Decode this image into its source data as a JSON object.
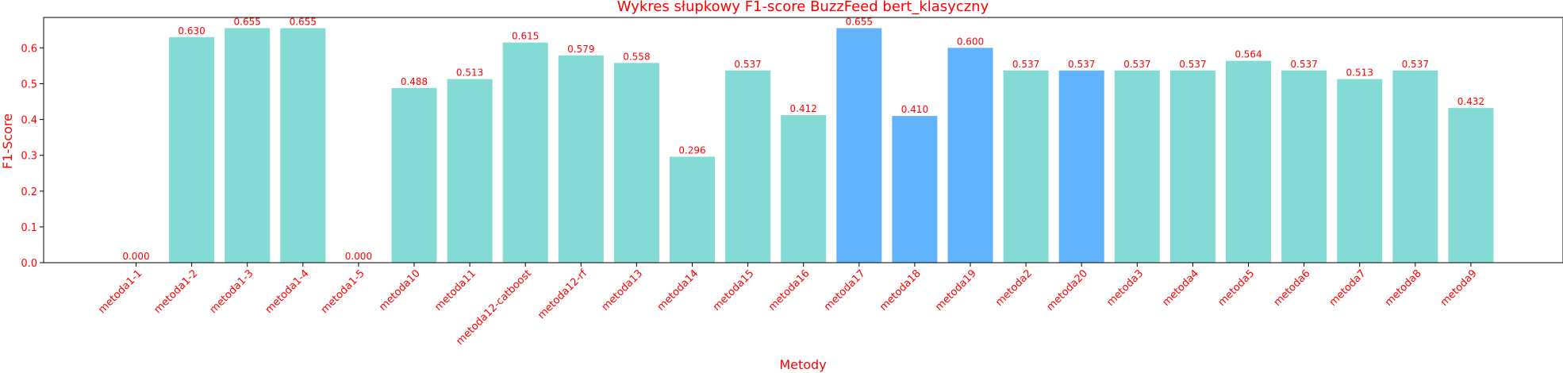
{
  "chart_data": {
    "type": "bar",
    "title": "Wykres słupkowy F1-score BuzzFeed bert_klasyczny",
    "xlabel": "Metody",
    "ylabel": "F1-Score",
    "ylim": [
      0,
      0.685
    ],
    "yticks": [
      "0.0",
      "0.1",
      "0.2",
      "0.3",
      "0.4",
      "0.5",
      "0.6"
    ],
    "grid": false,
    "colors": {
      "default": "#84dbd6",
      "highlight": "#61b3fb",
      "text": "#ff0000",
      "axis": "#000000"
    },
    "categories": [
      "metoda1-1",
      "metoda1-2",
      "metoda1-3",
      "metoda1-4",
      "metoda1-5",
      "metoda10",
      "metoda11",
      "metoda12-catboost",
      "metoda12-rf",
      "metoda13",
      "metoda14",
      "metoda15",
      "metoda16",
      "metoda17",
      "metoda18",
      "metoda19",
      "metoda2",
      "metoda20",
      "metoda3",
      "metoda4",
      "metoda5",
      "metoda6",
      "metoda7",
      "metoda8",
      "metoda9"
    ],
    "values": [
      0.0,
      0.63,
      0.655,
      0.655,
      0.0,
      0.488,
      0.513,
      0.615,
      0.579,
      0.558,
      0.296,
      0.537,
      0.412,
      0.655,
      0.41,
      0.6,
      0.537,
      0.537,
      0.537,
      0.537,
      0.564,
      0.537,
      0.513,
      0.537,
      0.432
    ],
    "value_labels": [
      "0.000",
      "0.630",
      "0.655",
      "0.655",
      "0.000",
      "0.488",
      "0.513",
      "0.615",
      "0.579",
      "0.558",
      "0.296",
      "0.537",
      "0.412",
      "0.655",
      "0.410",
      "0.600",
      "0.537",
      "0.537",
      "0.537",
      "0.537",
      "0.564",
      "0.537",
      "0.513",
      "0.537",
      "0.432"
    ],
    "highlighted": [
      false,
      false,
      false,
      false,
      false,
      false,
      false,
      false,
      false,
      false,
      false,
      false,
      false,
      true,
      true,
      true,
      false,
      true,
      false,
      false,
      false,
      false,
      false,
      false,
      false
    ]
  }
}
